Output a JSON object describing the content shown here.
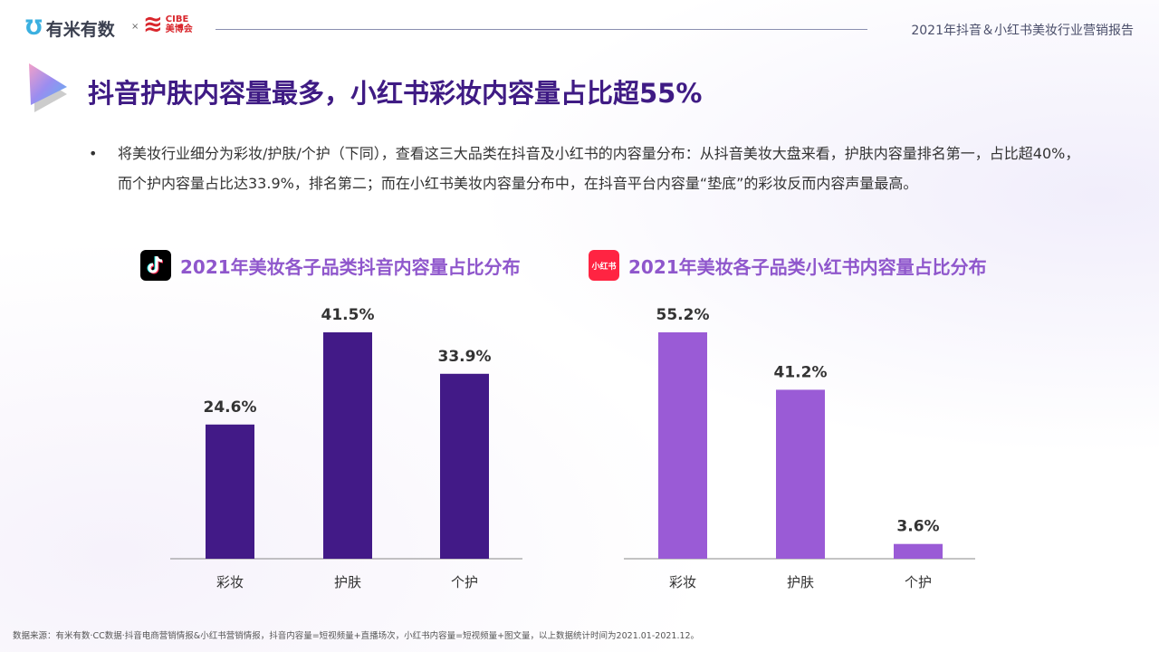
{
  "header": {
    "logo_left": "有米有数",
    "separator": "×",
    "logo_right_en": "CIBE",
    "logo_right_cn": "美博会",
    "report_title": "2021年抖音＆小红书美妆行业营销报告"
  },
  "title": "抖音护肤内容量最多，小红书彩妆内容量占比超55%",
  "bullet": "将美妆行业细分为彩妆/护肤/个护（下同），查看这三大品类在抖音及小红书的内容量分布：从抖音美妆大盘来看，护肤内容量排名第一，占比超40%，而个护内容量占比达33.9%，排名第二；而在小红书美妆内容量分布中，在抖音平台内容量“垫底”的彩妆反而内容声量最高。",
  "footer": "数据来源：有米有数·CC数据·抖音电商营销情报&小红书营销情报，抖音内容量=短视频量+直播场次，小红书内容量=短视频量+图文量，以上数据统计时间为2021.01-2021.12。",
  "xhs_icon_text": "小红书",
  "chart_data": [
    {
      "type": "bar",
      "title": "2021年美妆各子品类抖音内容量占比分布",
      "icon": "tiktok-icon",
      "categories": [
        "彩妆",
        "护肤",
        "个护"
      ],
      "values": [
        24.6,
        41.5,
        33.9
      ],
      "labels": [
        "24.6%",
        "41.5%",
        "33.9%"
      ],
      "unit": "%",
      "color": "#421a87",
      "grid": false
    },
    {
      "type": "bar",
      "title": "2021年美妆各子品类小红书内容量占比分布",
      "icon": "xiaohongshu-icon",
      "categories": [
        "彩妆",
        "护肤",
        "个护"
      ],
      "values": [
        55.2,
        41.2,
        3.6
      ],
      "labels": [
        "55.2%",
        "41.2%",
        "3.6%"
      ],
      "unit": "%",
      "color": "#9a5bd6",
      "grid": false
    }
  ]
}
